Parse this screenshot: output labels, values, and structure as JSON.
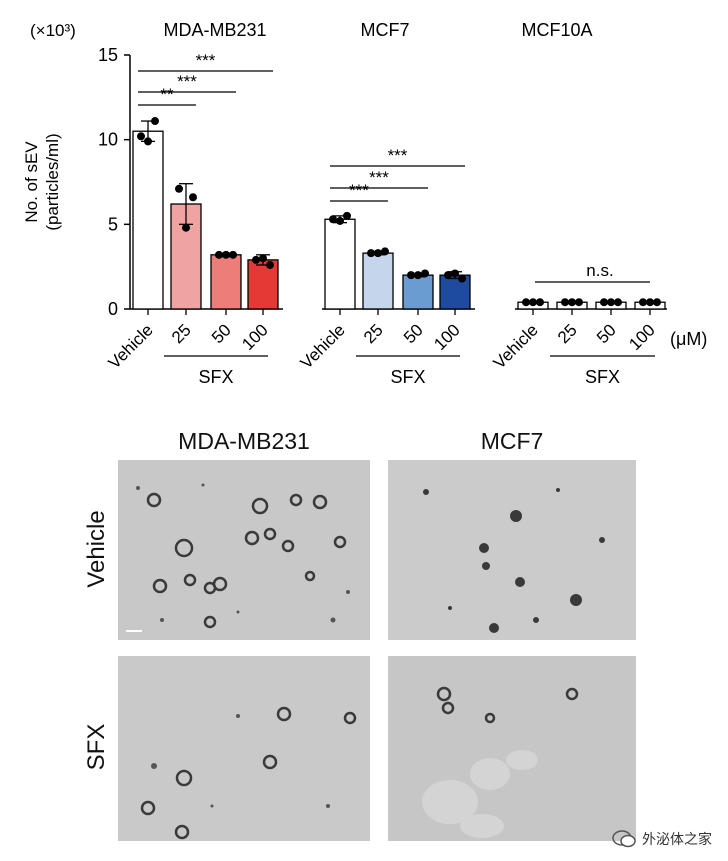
{
  "chart_data": {
    "type": "bar",
    "ylabel": "No. of sEV\n(particles/ml)",
    "yscale_label": "(×10³)",
    "ylim": [
      0,
      15
    ],
    "yticks": [
      0,
      5,
      10,
      15
    ],
    "unit": "(μM)",
    "groups": [
      {
        "name": "MDA-MB231",
        "categories": [
          "Vehicle",
          "25",
          "50",
          "100"
        ],
        "values": [
          10.5,
          6.2,
          3.2,
          2.9
        ],
        "errors": [
          0.6,
          1.2,
          0.1,
          0.3
        ],
        "points": [
          [
            10.2,
            11.1,
            9.9
          ],
          [
            7.1,
            6.6,
            4.8
          ],
          [
            3.2,
            3.2,
            3.2
          ],
          [
            2.9,
            2.6,
            3.0
          ]
        ],
        "colors": [
          "#ffffff",
          "#f0a4a2",
          "#ec7d78",
          "#e33a35"
        ],
        "treatment_label": "SFX",
        "significance": [
          {
            "to": 1,
            "label": "**"
          },
          {
            "to": 2,
            "label": "***"
          },
          {
            "to": 3,
            "label": "***"
          }
        ]
      },
      {
        "name": "MCF7",
        "categories": [
          "Vehicle",
          "25",
          "50",
          "100"
        ],
        "values": [
          5.3,
          3.3,
          2.0,
          2.0
        ],
        "errors": [
          0.2,
          0.1,
          0.1,
          0.2
        ],
        "points": [
          [
            5.3,
            5.5,
            5.2
          ],
          [
            3.3,
            3.4,
            3.3
          ],
          [
            2.0,
            2.1,
            2.0
          ],
          [
            2.0,
            1.8,
            2.1
          ]
        ],
        "colors": [
          "#ffffff",
          "#c4d5ec",
          "#6a9bd1",
          "#1e4aa0"
        ],
        "treatment_label": "SFX",
        "significance": [
          {
            "to": 1,
            "label": "***"
          },
          {
            "to": 2,
            "label": "***"
          },
          {
            "to": 3,
            "label": "***"
          }
        ]
      },
      {
        "name": "MCF10A",
        "categories": [
          "Vehicle",
          "25",
          "50",
          "100"
        ],
        "values": [
          0.4,
          0.4,
          0.4,
          0.4
        ],
        "errors": [
          0.0,
          0.0,
          0.0,
          0.0
        ],
        "points": [
          [
            0.4,
            0.4,
            0.4
          ],
          [
            0.4,
            0.4,
            0.4
          ],
          [
            0.4,
            0.4,
            0.4
          ],
          [
            0.4,
            0.4,
            0.4
          ]
        ],
        "colors": [
          "#ffffff",
          "#ffffff",
          "#ffffff",
          "#ffffff"
        ],
        "treatment_label": "SFX",
        "significance_ns": "n.s."
      }
    ]
  },
  "em_panel": {
    "column_titles": [
      "MDA-MB231",
      "MCF7"
    ],
    "row_labels": [
      "Vehicle",
      "SFX"
    ]
  },
  "watermark": "外泌体之家"
}
